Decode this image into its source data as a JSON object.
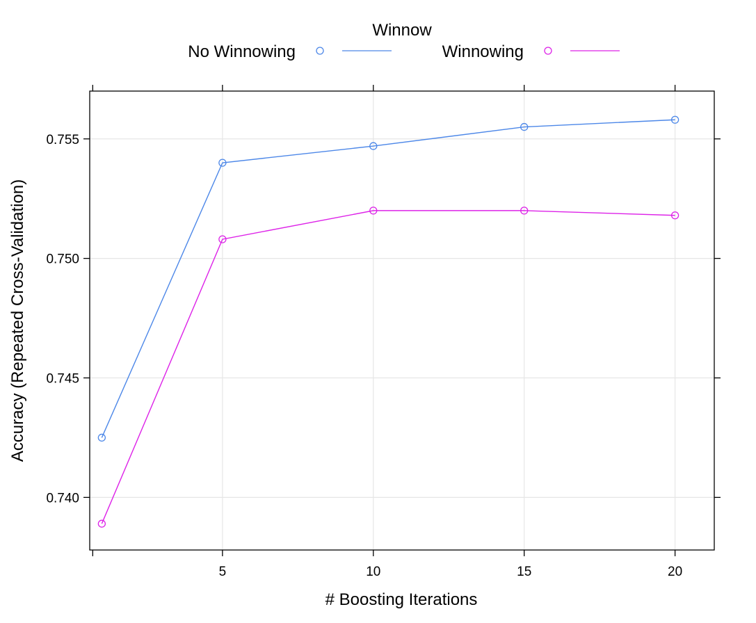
{
  "chart_data": {
    "type": "line",
    "title": "",
    "xlabel": "# Boosting Iterations",
    "ylabel": "Accuracy (Repeated Cross-Validation)",
    "x": [
      1,
      5,
      10,
      15,
      20
    ],
    "xlim": [
      0.6,
      21.3
    ],
    "ylim": [
      0.7378,
      0.757
    ],
    "xticks": [
      5,
      10,
      15,
      20
    ],
    "yticks": [
      0.74,
      0.745,
      0.75,
      0.755
    ],
    "ytick_labels": [
      "0.740",
      "0.745",
      "0.750",
      "0.755"
    ],
    "grid": true,
    "legend": {
      "title": "Winnow",
      "position": "top-center"
    },
    "series": [
      {
        "name": "No Winnowing",
        "color": "#4c87e8",
        "values": [
          0.7425,
          0.754,
          0.7547,
          0.7555,
          0.7558
        ]
      },
      {
        "name": "Winnowing",
        "color": "#dd22e8",
        "values": [
          0.7389,
          0.7508,
          0.752,
          0.752,
          0.7518
        ]
      }
    ]
  }
}
